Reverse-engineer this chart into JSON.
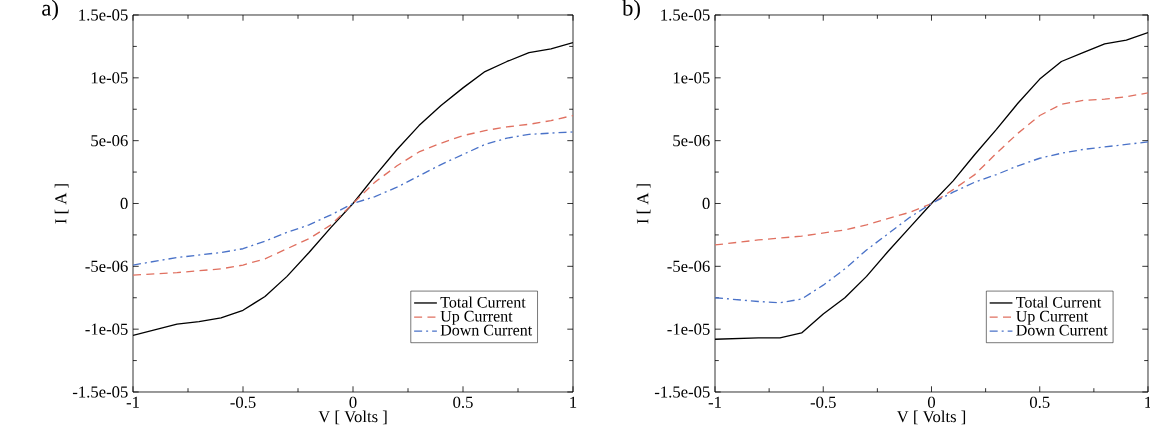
{
  "chart_data": [
    {
      "type": "line",
      "title": "a)",
      "xlabel": "V [ Volts ]",
      "ylabel": "I [ A ]",
      "legend": "bottom right",
      "xlim": [
        -1,
        1
      ],
      "xticks": [
        -1,
        -0.5,
        0,
        0.5,
        1
      ],
      "ylim": [
        -1.5e-05,
        1.5e-05
      ],
      "yticks": [
        {
          "value": -1.5e-05,
          "label": "-1.5e-05"
        },
        {
          "value": -1e-05,
          "label": "-1e-05"
        },
        {
          "value": -5e-06,
          "label": "-5e-06"
        },
        {
          "value": 0,
          "label": "0"
        },
        {
          "value": 5e-06,
          "label": "5e-06"
        },
        {
          "value": 1e-05,
          "label": "1e-05"
        },
        {
          "value": 1.5e-05,
          "label": "1.5e-05"
        }
      ],
      "series": [
        {
          "name": "Total Current",
          "color": "#000000",
          "line_style": "solid",
          "x": [
            -1,
            -0.8,
            -0.7,
            -0.6,
            -0.5,
            -0.4,
            -0.3,
            -0.2,
            -0.1,
            0,
            0.1,
            0.2,
            0.3,
            0.4,
            0.5,
            0.6,
            0.7,
            0.8,
            0.9,
            1
          ],
          "values": [
            -1.05e-05,
            -9.6e-06,
            -9.4e-06,
            -9.1e-06,
            -8.5e-06,
            -7.4e-06,
            -5.8e-06,
            -3.9e-06,
            -1.9e-06,
            0,
            2.2e-06,
            4.3e-06,
            6.2e-06,
            7.8e-06,
            9.2e-06,
            1.05e-05,
            1.13e-05,
            1.2e-05,
            1.23e-05,
            1.28e-05
          ]
        },
        {
          "name": "Up Current",
          "color": "#e07060",
          "line_style": "dashed",
          "x": [
            -1,
            -0.8,
            -0.6,
            -0.5,
            -0.4,
            -0.3,
            -0.2,
            -0.1,
            0,
            0.1,
            0.2,
            0.3,
            0.4,
            0.5,
            0.6,
            0.7,
            0.8,
            0.9,
            1
          ],
          "values": [
            -5.7e-06,
            -5.5e-06,
            -5.2e-06,
            -4.9e-06,
            -4.4e-06,
            -3.6e-06,
            -2.8e-06,
            -1.7e-06,
            0,
            1.7e-06,
            3e-06,
            4.1e-06,
            4.8e-06,
            5.4e-06,
            5.8e-06,
            6.1e-06,
            6.3e-06,
            6.6e-06,
            7e-06
          ]
        },
        {
          "name": "Down Current",
          "color": "#4a72c8",
          "line_style": "dashdot",
          "x": [
            -1,
            -0.8,
            -0.6,
            -0.5,
            -0.4,
            -0.3,
            -0.2,
            -0.1,
            0,
            0.1,
            0.2,
            0.3,
            0.4,
            0.5,
            0.6,
            0.7,
            0.8,
            0.9,
            1
          ],
          "values": [
            -4.9e-06,
            -4.3e-06,
            -3.9e-06,
            -3.6e-06,
            -3e-06,
            -2.3e-06,
            -1.7e-06,
            -9e-07,
            0,
            5.5e-07,
            1.3e-06,
            2.2e-06,
            3.1e-06,
            3.9e-06,
            4.7e-06,
            5.2e-06,
            5.5e-06,
            5.6e-06,
            5.7e-06
          ]
        }
      ]
    },
    {
      "type": "line",
      "title": "b)",
      "xlabel": "V [ Volts ]",
      "ylabel": "I [ A ]",
      "legend": "bottom right",
      "xlim": [
        -1,
        1
      ],
      "xticks": [
        -1,
        -0.5,
        0,
        0.5,
        1
      ],
      "ylim": [
        -1.5e-05,
        1.5e-05
      ],
      "yticks": [
        {
          "value": -1.5e-05,
          "label": "-1.5e-05"
        },
        {
          "value": -1e-05,
          "label": "-1e-05"
        },
        {
          "value": -5e-06,
          "label": "-5e-06"
        },
        {
          "value": 0,
          "label": "0"
        },
        {
          "value": 5e-06,
          "label": "5e-06"
        },
        {
          "value": 1e-05,
          "label": "1e-05"
        },
        {
          "value": 1.5e-05,
          "label": "1.5e-05"
        }
      ],
      "series": [
        {
          "name": "Total Current",
          "color": "#000000",
          "line_style": "solid",
          "x": [
            -1,
            -0.8,
            -0.7,
            -0.6,
            -0.5,
            -0.4,
            -0.3,
            -0.2,
            -0.1,
            0,
            0.1,
            0.2,
            0.3,
            0.4,
            0.5,
            0.6,
            0.7,
            0.8,
            0.9,
            1
          ],
          "values": [
            -1.08e-05,
            -1.07e-05,
            -1.07e-05,
            -1.03e-05,
            -8.8e-06,
            -7.5e-06,
            -5.8e-06,
            -3.8e-06,
            -1.9e-06,
            0,
            1.8e-06,
            3.9e-06,
            5.9e-06,
            8e-06,
            9.9e-06,
            1.13e-05,
            1.2e-05,
            1.27e-05,
            1.3e-05,
            1.36e-05
          ]
        },
        {
          "name": "Up Current",
          "color": "#e07060",
          "line_style": "dashed",
          "x": [
            -1,
            -0.8,
            -0.6,
            -0.4,
            -0.3,
            -0.2,
            -0.1,
            0,
            0.1,
            0.2,
            0.3,
            0.4,
            0.5,
            0.6,
            0.7,
            0.8,
            0.9,
            1
          ],
          "values": [
            -3.3e-06,
            -2.9e-06,
            -2.6e-06,
            -2.1e-06,
            -1.7e-06,
            -1.2e-06,
            -7e-07,
            0,
            1.1e-06,
            2.3e-06,
            4e-06,
            5.6e-06,
            7e-06,
            7.9e-06,
            8.2e-06,
            8.3e-06,
            8.5e-06,
            8.8e-06
          ]
        },
        {
          "name": "Down Current",
          "color": "#4a72c8",
          "line_style": "dashdot",
          "x": [
            -1,
            -0.8,
            -0.7,
            -0.6,
            -0.5,
            -0.4,
            -0.3,
            -0.2,
            -0.1,
            0,
            0.1,
            0.2,
            0.3,
            0.4,
            0.5,
            0.6,
            0.7,
            0.8,
            0.9,
            1
          ],
          "values": [
            -7.5e-06,
            -7.8e-06,
            -7.9e-06,
            -7.6e-06,
            -6.5e-06,
            -5.2e-06,
            -3.7e-06,
            -2.4e-06,
            -1.1e-06,
            0,
            9e-07,
            1.7e-06,
            2.3e-06,
            3e-06,
            3.6e-06,
            4e-06,
            4.3e-06,
            4.5e-06,
            4.7e-06,
            4.9e-06
          ]
        }
      ]
    }
  ]
}
